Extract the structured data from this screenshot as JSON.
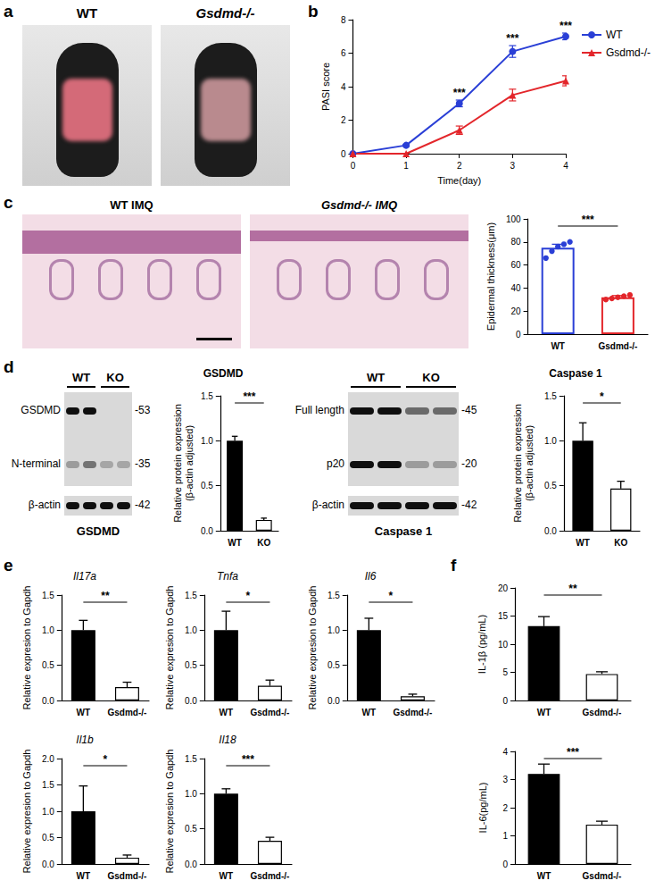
{
  "panel_labels": [
    "a",
    "b",
    "c",
    "d",
    "e",
    "f"
  ],
  "photos": {
    "labels": [
      "WT",
      "Gsdmd-/-"
    ]
  },
  "histology": {
    "labels": [
      "WT IMQ",
      "Gsdmd-/- IMQ"
    ]
  },
  "blots": [
    {
      "lanes": [
        "WT",
        "KO"
      ],
      "rows": [
        {
          "label": "GSDMD",
          "size_label": "-53"
        },
        {
          "label": "N-terminal",
          "size_label": "-35"
        },
        {
          "label": "β-actin",
          "size_label": "-42"
        }
      ],
      "caption": "GSDMD"
    },
    {
      "lanes": [
        "WT",
        "KO"
      ],
      "rows": [
        {
          "label": "Full length",
          "size_label": "-45"
        },
        {
          "label": "p20",
          "size_label": "-20"
        },
        {
          "label": "β-actin",
          "size_label": "-42"
        }
      ],
      "caption": "Caspase 1"
    }
  ],
  "chart_data": [
    {
      "type": "line",
      "x_label": "Time(day)",
      "y_label": "PASI score",
      "x": [
        0,
        1,
        2,
        3,
        4
      ],
      "xlim": [
        0,
        4
      ],
      "xticks": [
        0,
        1,
        2,
        3,
        4
      ],
      "ylim": [
        0,
        8
      ],
      "yticks": [
        0,
        2,
        4,
        6,
        8
      ],
      "series": [
        {
          "name": "WT",
          "color": "#2a3fd6",
          "marker": "circle",
          "values": [
            0,
            0.5,
            3.0,
            6.1,
            7.0
          ],
          "errors": [
            0,
            0.05,
            0.2,
            0.35,
            0.2
          ]
        },
        {
          "name": "Gsdmd-/-",
          "color": "#e3262b",
          "marker": "triangle",
          "values": [
            0,
            0,
            1.4,
            3.5,
            4.35
          ],
          "errors": [
            0,
            0,
            0.25,
            0.35,
            0.3
          ]
        }
      ],
      "annotations": [
        {
          "x": 2,
          "text": "***"
        },
        {
          "x": 3,
          "text": "***"
        },
        {
          "x": 4,
          "text": "***"
        }
      ],
      "legend": "upper right",
      "grid": false
    },
    {
      "type": "bar",
      "y_label": "Epidermal thickness(μm)",
      "categories": [
        "WT",
        "Gsdmd-/-"
      ],
      "values": [
        75,
        32
      ],
      "errors": [
        3,
        1.5
      ],
      "colors": [
        "#2a3fd6",
        "#e3262b"
      ],
      "points": [
        [
          66,
          72,
          76,
          78,
          80
        ],
        [
          30,
          31,
          32,
          33,
          34
        ]
      ],
      "ylim": [
        0,
        100
      ],
      "yticks": [
        0,
        20,
        40,
        60,
        80,
        100
      ],
      "significance": "***",
      "grid": false
    },
    {
      "type": "bar",
      "title": "GSDMD",
      "y_label": "Relative protein expression\n(β-actin adjusted)",
      "categories": [
        "WT",
        "KO"
      ],
      "values": [
        1.0,
        0.12
      ],
      "errors": [
        0.05,
        0.02
      ],
      "colors": [
        "#000000",
        "#ffffff"
      ],
      "ylim": [
        0,
        1.5
      ],
      "yticks": [
        {
          "value": 0,
          "label": "0.0"
        },
        {
          "value": 0.5,
          "label": "0.5"
        },
        {
          "value": 1,
          "label": "1.0"
        },
        {
          "value": 1.5,
          "label": "1.5"
        }
      ],
      "significance": "***",
      "grid": false
    },
    {
      "type": "bar",
      "title": "Caspase 1",
      "y_label": "Relative protein expression\n(β-actin adjusted)",
      "categories": [
        "WT",
        "KO"
      ],
      "values": [
        1.0,
        0.47
      ],
      "errors": [
        0.2,
        0.08
      ],
      "colors": [
        "#000000",
        "#ffffff"
      ],
      "ylim": [
        0,
        1.5
      ],
      "yticks": [
        {
          "value": 0,
          "label": "0.0"
        },
        {
          "value": 0.5,
          "label": "0.5"
        },
        {
          "value": 1,
          "label": "1.0"
        },
        {
          "value": 1.5,
          "label": "1.5"
        }
      ],
      "significance": "*",
      "grid": false
    },
    {
      "type": "bar",
      "title": "Il17a",
      "y_label": "Relative expresion to Gapdh",
      "categories": [
        "WT",
        "Gsdmd-/-"
      ],
      "values": [
        1.0,
        0.19
      ],
      "errors": [
        0.14,
        0.07
      ],
      "colors": [
        "#000000",
        "#ffffff"
      ],
      "ylim": [
        0,
        1.5
      ],
      "yticks": [
        {
          "value": 0,
          "label": "0.0"
        },
        {
          "value": 0.5,
          "label": "0.5"
        },
        {
          "value": 1,
          "label": "1.0"
        },
        {
          "value": 1.5,
          "label": "1.5"
        }
      ],
      "significance": "**",
      "grid": false
    },
    {
      "type": "bar",
      "title": "Tnfa",
      "y_label": "Relative expresion to Gapdh",
      "categories": [
        "WT",
        "Gsdmd-/-"
      ],
      "values": [
        1.0,
        0.21
      ],
      "errors": [
        0.27,
        0.08
      ],
      "colors": [
        "#000000",
        "#ffffff"
      ],
      "ylim": [
        0,
        1.5
      ],
      "yticks": [
        {
          "value": 0,
          "label": "0.0"
        },
        {
          "value": 0.5,
          "label": "0.5"
        },
        {
          "value": 1,
          "label": "1.0"
        },
        {
          "value": 1.5,
          "label": "1.5"
        }
      ],
      "significance": "*",
      "grid": false
    },
    {
      "type": "bar",
      "title": "Il6",
      "y_label": "Relative expresion to Gapdh",
      "categories": [
        "WT",
        "Gsdmd-/-"
      ],
      "values": [
        1.0,
        0.06
      ],
      "errors": [
        0.17,
        0.03
      ],
      "colors": [
        "#000000",
        "#ffffff"
      ],
      "ylim": [
        0,
        1.5
      ],
      "yticks": [
        {
          "value": 0,
          "label": "0.0"
        },
        {
          "value": 0.5,
          "label": "0.5"
        },
        {
          "value": 1,
          "label": "1.0"
        },
        {
          "value": 1.5,
          "label": "1.5"
        }
      ],
      "significance": "*",
      "grid": false
    },
    {
      "type": "bar",
      "title": "Il1b",
      "y_label": "Relative expresion to Gapdh",
      "categories": [
        "WT",
        "Gsdmd-/-"
      ],
      "values": [
        1.0,
        0.12
      ],
      "errors": [
        0.48,
        0.05
      ],
      "colors": [
        "#000000",
        "#ffffff"
      ],
      "ylim": [
        0,
        2
      ],
      "yticks": [
        {
          "value": 0,
          "label": "0.0"
        },
        {
          "value": 0.5,
          "label": "0.5"
        },
        {
          "value": 1,
          "label": "1.0"
        },
        {
          "value": 1.5,
          "label": "1.5"
        },
        {
          "value": 2,
          "label": "2.0"
        }
      ],
      "significance": "*",
      "grid": false
    },
    {
      "type": "bar",
      "title": "Il18",
      "y_label": "Relative expresion to Gapdh",
      "categories": [
        "WT",
        "Gsdmd-/-"
      ],
      "values": [
        1.0,
        0.33
      ],
      "errors": [
        0.07,
        0.05
      ],
      "colors": [
        "#000000",
        "#ffffff"
      ],
      "ylim": [
        0,
        1.5
      ],
      "yticks": [
        {
          "value": 0,
          "label": "0.0"
        },
        {
          "value": 0.5,
          "label": "0.5"
        },
        {
          "value": 1,
          "label": "1.0"
        },
        {
          "value": 1.5,
          "label": "1.5"
        }
      ],
      "significance": "***",
      "grid": false
    },
    {
      "type": "bar",
      "y_label": "IL-1β (pg/mL)",
      "categories": [
        "WT",
        "Gsdmd-/-"
      ],
      "values": [
        13.2,
        4.7
      ],
      "errors": [
        1.7,
        0.4
      ],
      "colors": [
        "#000000",
        "#ffffff"
      ],
      "ylim": [
        0,
        20
      ],
      "yticks": [
        0,
        5,
        10,
        15,
        20
      ],
      "significance": "**",
      "grid": false
    },
    {
      "type": "bar",
      "y_label": "IL-6(pg/mL)",
      "categories": [
        "WT",
        "Gsdmd-/-"
      ],
      "values": [
        3.2,
        1.4
      ],
      "errors": [
        0.35,
        0.12
      ],
      "colors": [
        "#000000",
        "#ffffff"
      ],
      "ylim": [
        0,
        4
      ],
      "yticks": [
        0,
        1,
        2,
        3,
        4
      ],
      "significance": "***",
      "grid": false
    }
  ]
}
